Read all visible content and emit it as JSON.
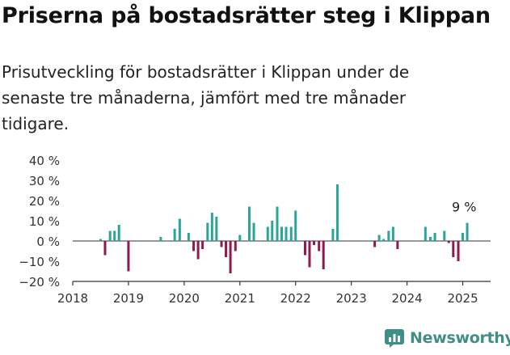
{
  "header": {
    "title": "Priserna på bostadsrätter steg i Klippan",
    "subtitle": "Prisutveckling för bostadsrätter i Klippan under de senaste tre månaderna, jämfört med tre månader tidigare."
  },
  "brand": {
    "name": "Newsworthy",
    "icon": "newsworthy-logo-icon"
  },
  "colors": {
    "positive": "#2ba598",
    "negative": "#8e1a51",
    "axis": "#333333",
    "text": "#333333"
  },
  "chart_data": {
    "type": "bar",
    "title": "Priserna på bostadsrätter steg i Klippan",
    "xlabel": "",
    "ylabel": "",
    "ylim": [
      -20,
      40
    ],
    "yticks": [
      -20,
      -10,
      0,
      10,
      20,
      30,
      40
    ],
    "ytick_labels": [
      "−20 %",
      "−10 %",
      "0 %",
      "10 %",
      "20 %",
      "30 %",
      "40 %"
    ],
    "xlim": [
      2018.0,
      2025.5
    ],
    "xticks": [
      2018,
      2019,
      2020,
      2021,
      2022,
      2023,
      2024,
      2025
    ],
    "xtick_labels": [
      "2018",
      "2019",
      "2020",
      "2021",
      "2022",
      "2023",
      "2024",
      "2025"
    ],
    "grid": false,
    "legend": "none",
    "annotation": {
      "text": "9 %",
      "x": 2025.17,
      "y": 9
    },
    "series": [
      {
        "values": [
          {
            "x": 2018.5,
            "y": 1
          },
          {
            "x": 2018.58,
            "y": -7
          },
          {
            "x": 2018.67,
            "y": 5
          },
          {
            "x": 2018.75,
            "y": 5
          },
          {
            "x": 2018.83,
            "y": 8
          },
          {
            "x": 2019.0,
            "y": -15
          },
          {
            "x": 2019.58,
            "y": 2
          },
          {
            "x": 2019.83,
            "y": 6
          },
          {
            "x": 2019.92,
            "y": 11
          },
          {
            "x": 2020.08,
            "y": 4
          },
          {
            "x": 2020.17,
            "y": -5
          },
          {
            "x": 2020.25,
            "y": -9
          },
          {
            "x": 2020.33,
            "y": -4
          },
          {
            "x": 2020.42,
            "y": 9
          },
          {
            "x": 2020.5,
            "y": 14
          },
          {
            "x": 2020.58,
            "y": 12
          },
          {
            "x": 2020.67,
            "y": -3
          },
          {
            "x": 2020.75,
            "y": -8
          },
          {
            "x": 2020.83,
            "y": -16
          },
          {
            "x": 2020.92,
            "y": -5
          },
          {
            "x": 2021.0,
            "y": 3
          },
          {
            "x": 2021.17,
            "y": 17
          },
          {
            "x": 2021.25,
            "y": 9
          },
          {
            "x": 2021.5,
            "y": 7
          },
          {
            "x": 2021.58,
            "y": 10
          },
          {
            "x": 2021.67,
            "y": 17
          },
          {
            "x": 2021.75,
            "y": 7
          },
          {
            "x": 2021.83,
            "y": 7
          },
          {
            "x": 2021.92,
            "y": 7
          },
          {
            "x": 2022.0,
            "y": 15
          },
          {
            "x": 2022.17,
            "y": -7
          },
          {
            "x": 2022.25,
            "y": -13
          },
          {
            "x": 2022.33,
            "y": -2
          },
          {
            "x": 2022.42,
            "y": -5
          },
          {
            "x": 2022.5,
            "y": -14
          },
          {
            "x": 2022.67,
            "y": 6
          },
          {
            "x": 2022.75,
            "y": 28
          },
          {
            "x": 2023.42,
            "y": -3
          },
          {
            "x": 2023.5,
            "y": 3
          },
          {
            "x": 2023.58,
            "y": 1
          },
          {
            "x": 2023.67,
            "y": 5
          },
          {
            "x": 2023.75,
            "y": 7
          },
          {
            "x": 2023.83,
            "y": -4
          },
          {
            "x": 2024.33,
            "y": 7
          },
          {
            "x": 2024.42,
            "y": 2
          },
          {
            "x": 2024.5,
            "y": 4
          },
          {
            "x": 2024.67,
            "y": 5
          },
          {
            "x": 2024.75,
            "y": -1
          },
          {
            "x": 2024.83,
            "y": -8
          },
          {
            "x": 2024.92,
            "y": -10
          },
          {
            "x": 2025.0,
            "y": 4
          },
          {
            "x": 2025.08,
            "y": 9
          }
        ]
      }
    ]
  }
}
